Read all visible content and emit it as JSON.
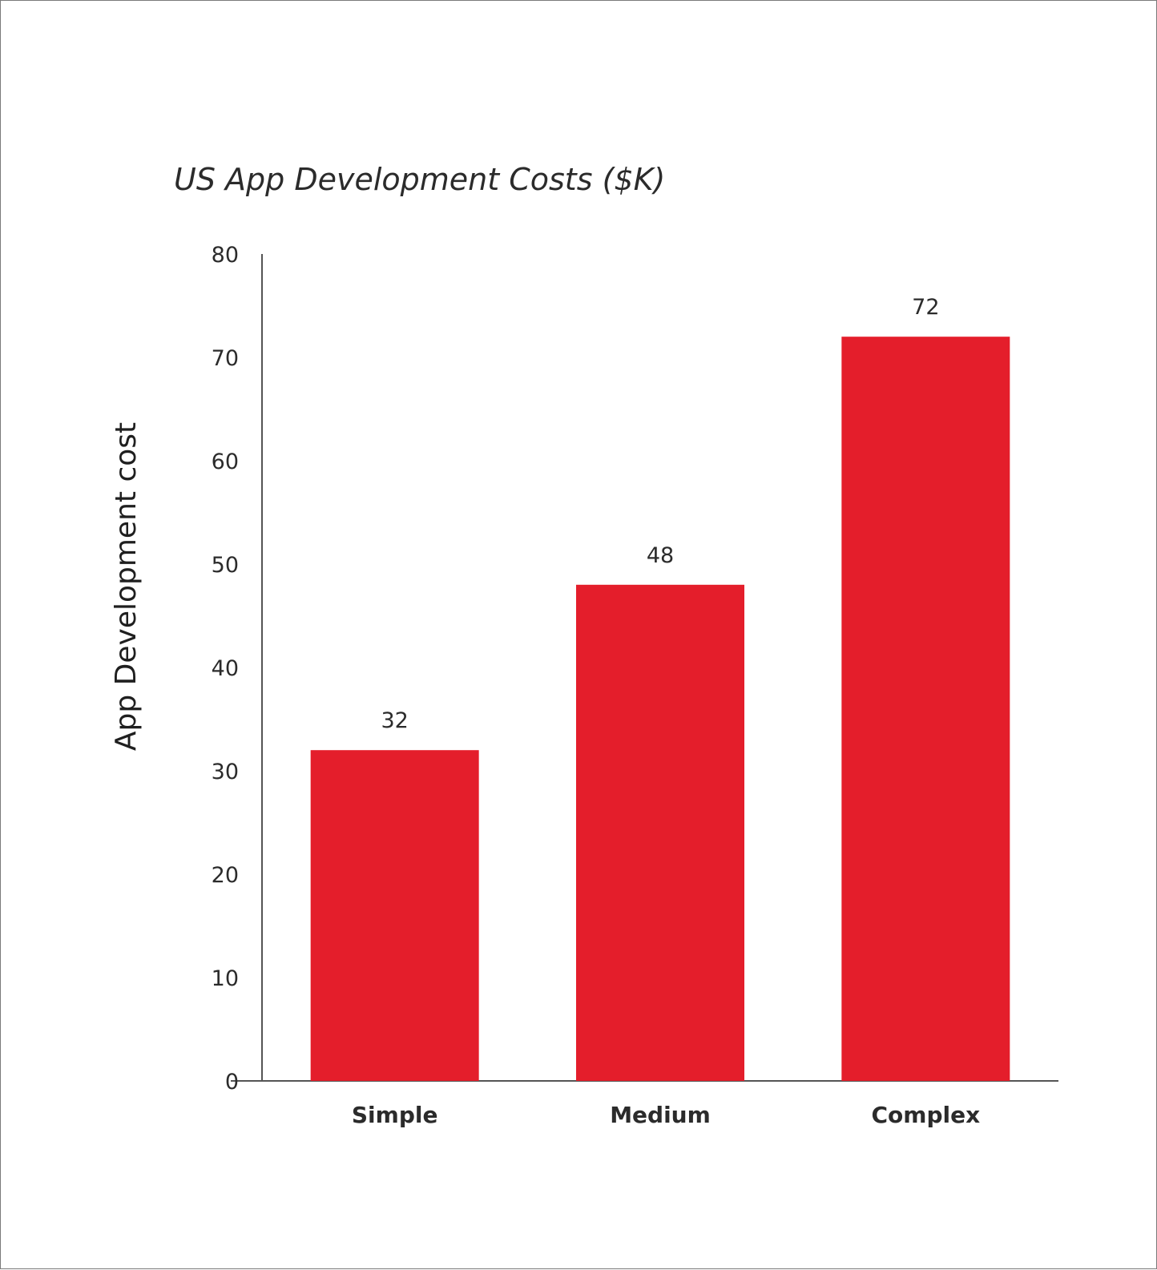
{
  "chart_data": {
    "type": "bar",
    "title": "US App Development Costs ($K)",
    "xlabel": "",
    "ylabel": "App Development cost",
    "categories": [
      "Simple",
      "Medium",
      "Complex"
    ],
    "values": [
      32,
      48,
      72
    ],
    "data_labels": [
      "32",
      "48",
      "72"
    ],
    "y_ticks": [
      "0",
      "10",
      "20",
      "30",
      "40",
      "50",
      "60",
      "70",
      "80"
    ],
    "ylim": [
      0,
      80
    ],
    "grid": false,
    "legend": "none",
    "bar_color": "#e41e2b"
  }
}
